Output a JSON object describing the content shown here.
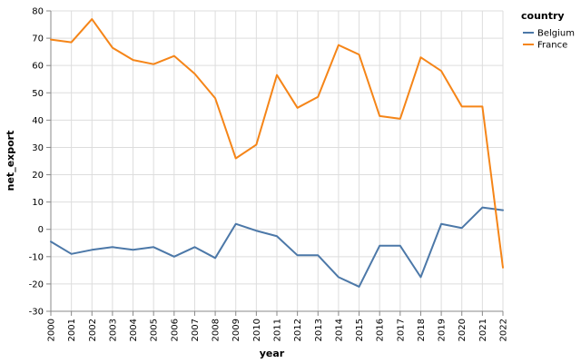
{
  "chart_data": {
    "type": "line",
    "xlabel": "year",
    "ylabel": "net_export",
    "ylim": [
      -30,
      80
    ],
    "yticks": [
      -30,
      -20,
      -10,
      0,
      10,
      20,
      30,
      40,
      50,
      60,
      70,
      80
    ],
    "categories": [
      "2000",
      "2001",
      "2002",
      "2003",
      "2004",
      "2005",
      "2006",
      "2007",
      "2008",
      "2009",
      "2010",
      "2011",
      "2012",
      "2013",
      "2014",
      "2015",
      "2016",
      "2017",
      "2018",
      "2019",
      "2020",
      "2021",
      "2022"
    ],
    "grid": true,
    "legend": {
      "title": "country",
      "placement": "top-right"
    },
    "series": [
      {
        "name": "Belgium",
        "color": "#4c78a8",
        "values": [
          -4.5,
          -9,
          -7.5,
          -6.5,
          -7.5,
          -6.5,
          -10,
          -6.5,
          -10.5,
          2,
          -0.5,
          -2.5,
          -9.5,
          -9.5,
          -17.5,
          -21,
          -6,
          -6,
          -17.5,
          2,
          0.5,
          8,
          7
        ]
      },
      {
        "name": "France",
        "color": "#f58518",
        "values": [
          69.5,
          68.5,
          77,
          66.5,
          62,
          60.5,
          63.5,
          57,
          48,
          26,
          31,
          56.5,
          44.5,
          48.5,
          67.5,
          64,
          41.5,
          40.5,
          63,
          58,
          45,
          45,
          -14
        ]
      }
    ]
  }
}
